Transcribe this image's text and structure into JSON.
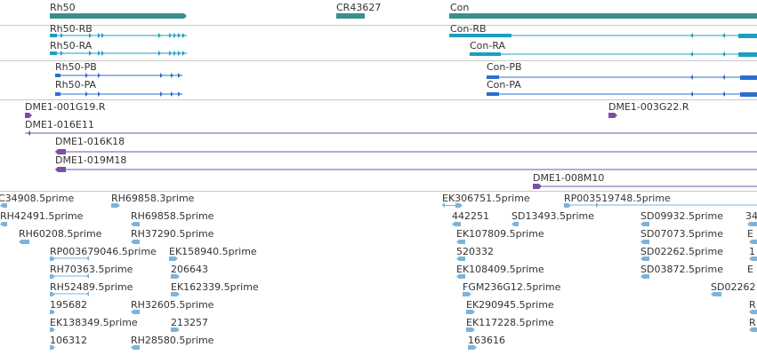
{
  "colors": {
    "gene": "#3a8f8f",
    "transcript_rb": "#1c9fc2",
    "transcript_pb": "#2b6fce",
    "bac": "#7a4fa8",
    "est": "#7db3d9",
    "separator": "#c9c9c9"
  },
  "tracks": {
    "genes": {
      "items": [
        {
          "label": "Rh50"
        },
        {
          "label": "CR43627"
        },
        {
          "label": "Con"
        }
      ]
    },
    "transcripts": {
      "items": [
        {
          "label": "Rh50-RB"
        },
        {
          "label": "Rh50-RA"
        },
        {
          "label": "Con-RB"
        },
        {
          "label": "Con-RA"
        }
      ]
    },
    "proteins": {
      "items": [
        {
          "label": "Rh50-PB"
        },
        {
          "label": "Rh50-PA"
        },
        {
          "label": "Con-PB"
        },
        {
          "label": "Con-PA"
        }
      ]
    },
    "bacs": {
      "items": [
        {
          "label": "DME1-001G19.R"
        },
        {
          "label": "DME1-003G22.R"
        },
        {
          "label": "DME1-016E11"
        },
        {
          "label": "DME1-016K18"
        },
        {
          "label": "DME1-019M18"
        },
        {
          "label": "DME1-008M10"
        }
      ]
    },
    "ests": {
      "items": [
        {
          "label": "C34908.5prime"
        },
        {
          "label": "RH69858.3prime"
        },
        {
          "label": "EK306751.5prime"
        },
        {
          "label": "RP003519748.5prime"
        },
        {
          "label": "RH42491.5prime"
        },
        {
          "label": "RH69858.5prime"
        },
        {
          "label": "442251"
        },
        {
          "label": "SD13493.5prime"
        },
        {
          "label": "SD09932.5prime"
        },
        {
          "label": "34"
        },
        {
          "label": "RH60208.5prime"
        },
        {
          "label": "RH37290.5prime"
        },
        {
          "label": "EK107809.5prime"
        },
        {
          "label": "SD07073.5prime"
        },
        {
          "label": "E"
        },
        {
          "label": "RP003679046.5prime"
        },
        {
          "label": "EK158940.5prime"
        },
        {
          "label": "520332"
        },
        {
          "label": "SD02262.5prime"
        },
        {
          "label": "1"
        },
        {
          "label": "RH70363.5prime"
        },
        {
          "label": "206643"
        },
        {
          "label": "EK108409.5prime"
        },
        {
          "label": "SD03872.5prime"
        },
        {
          "label": "E"
        },
        {
          "label": "RH52489.5prime"
        },
        {
          "label": "EK162339.5prime"
        },
        {
          "label": "FGM236G12.5prime"
        },
        {
          "label": "SD02262"
        },
        {
          "label": "195682"
        },
        {
          "label": "RH32605.5prime"
        },
        {
          "label": "EK290945.5prime"
        },
        {
          "label": "R"
        },
        {
          "label": "EK138349.5prime"
        },
        {
          "label": "213257"
        },
        {
          "label": "EK117228.5prime"
        },
        {
          "label": "R"
        },
        {
          "label": "106312"
        },
        {
          "label": "RH28580.5prime"
        },
        {
          "label": "163616"
        }
      ]
    }
  }
}
